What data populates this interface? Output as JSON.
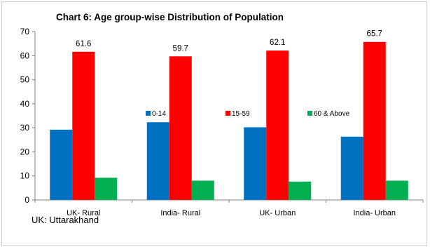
{
  "chart_data": {
    "type": "bar",
    "title": "Chart 6: Age group-wise Distribution of Population",
    "xlabel": "",
    "ylabel": "",
    "ylim": [
      0,
      70
    ],
    "yticks": [
      0,
      10,
      20,
      30,
      40,
      50,
      60,
      70
    ],
    "categories": [
      "UK- Rural",
      "India- Rural",
      "UK- Urban",
      "India- Urban"
    ],
    "series": [
      {
        "name": "0-14",
        "color": "#0070C0",
        "values": [
          29.2,
          32.3,
          30.2,
          26.3
        ],
        "labels": [
          "",
          "",
          "",
          ""
        ]
      },
      {
        "name": "15-59",
        "color": "#FF0000",
        "values": [
          61.6,
          59.7,
          62.1,
          65.7
        ],
        "labels": [
          "61.6",
          "59.7",
          "62.1",
          "65.7"
        ]
      },
      {
        "name": "60 & Above",
        "color": "#00B050",
        "values": [
          9.2,
          8.0,
          7.6,
          8.0
        ],
        "labels": [
          "",
          "",
          "",
          ""
        ]
      }
    ],
    "legend_position": "center",
    "grid": false
  },
  "footnote": "UK: Uttarakhand"
}
